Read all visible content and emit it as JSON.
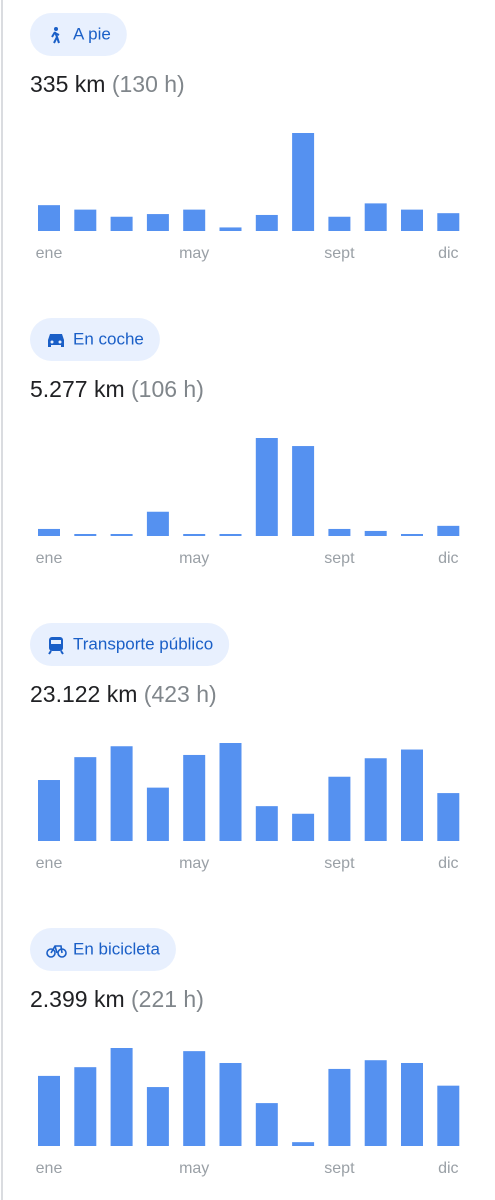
{
  "chart_data": [
    {
      "type": "bar",
      "title": "A pie",
      "total": "335 km",
      "duration": "(130 h)",
      "color": "#5591f0",
      "categories": [
        "ene",
        null,
        null,
        null,
        "may",
        null,
        null,
        null,
        "sept",
        null,
        null,
        "dic"
      ],
      "values": [
        29,
        24,
        16,
        19,
        24,
        4,
        18,
        110,
        16,
        31,
        24,
        20
      ]
    },
    {
      "type": "bar",
      "title": "En coche",
      "total": "5.277 km",
      "duration": "(106 h)",
      "color": "#5591f0",
      "categories": [
        "ene",
        null,
        null,
        null,
        "may",
        null,
        null,
        null,
        "sept",
        null,
        null,
        "dic"
      ],
      "values": [
        148,
        42,
        42,
        509,
        42,
        42,
        2056,
        1887,
        148,
        106,
        42,
        213
      ]
    },
    {
      "type": "bar",
      "title": "Transporte público",
      "total": "23.122 km",
      "duration": "(423 h)",
      "color": "#5591f0",
      "categories": [
        "ene",
        null,
        null,
        null,
        "may",
        null,
        null,
        null,
        "sept",
        null,
        null,
        "dic"
      ],
      "values": [
        1708,
        2349,
        2654,
        1495,
        2410,
        2745,
        976,
        763,
        1800,
        2318,
        2562,
        1342
      ]
    },
    {
      "type": "bar",
      "title": "En bicicleta",
      "total": "2.399 km",
      "duration": "(221 h)",
      "color": "#5591f0",
      "categories": [
        "ene",
        null,
        null,
        null,
        "may",
        null,
        null,
        null,
        "sept",
        null,
        null,
        "dic"
      ],
      "values": [
        201,
        226,
        281,
        169,
        272,
        238,
        123,
        11,
        221,
        246,
        238,
        173
      ]
    }
  ]
}
